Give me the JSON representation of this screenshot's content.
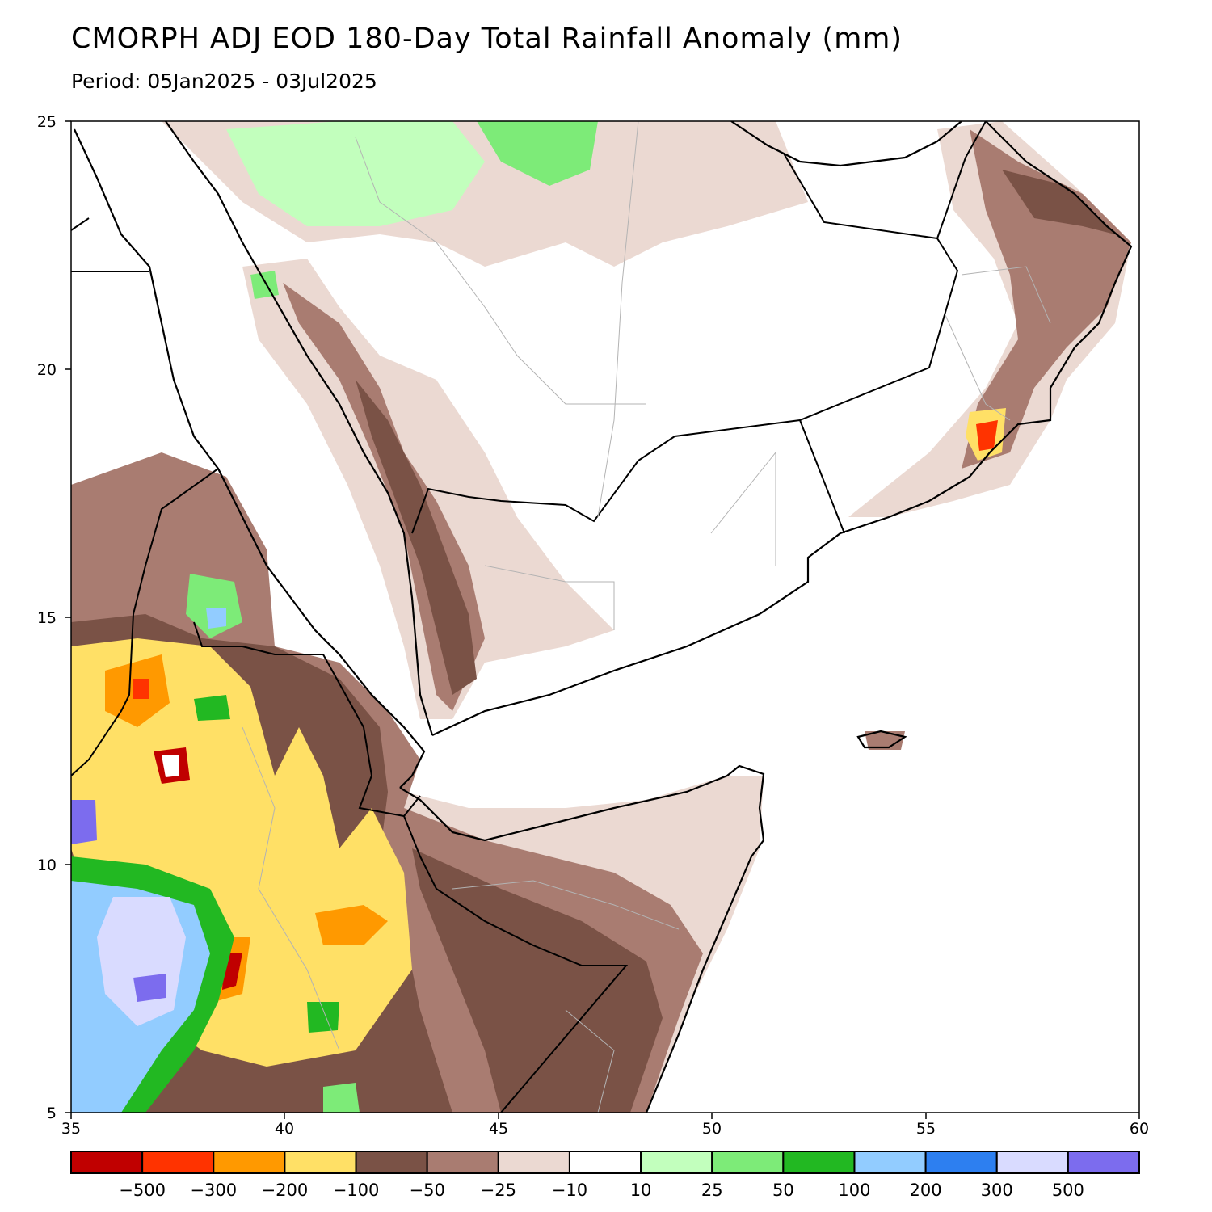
{
  "title": "CMORPH ADJ EOD 180-Day Total Rainfall Anomaly (mm)",
  "subtitle": "Period: 05Jan2025 - 03Jul2025",
  "axes": {
    "x_ticks": [
      "35",
      "40",
      "45",
      "50",
      "55",
      "60"
    ],
    "y_ticks": [
      "25",
      "20",
      "15",
      "10",
      "5"
    ]
  },
  "colorbar": {
    "labels": [
      "-500",
      "-300",
      "-200",
      "-100",
      "-50",
      "-25",
      "-10",
      "10",
      "25",
      "50",
      "100",
      "200",
      "300",
      "500"
    ],
    "colors": [
      "#c00000",
      "#ff3300",
      "#ff9900",
      "#ffe066",
      "#7a5246",
      "#a97c71",
      "#ebd9d2",
      "#ffffff",
      "#c2ffbd",
      "#7deb78",
      "#22b822",
      "#92ccff",
      "#2d7ff0",
      "#d9dbff",
      "#7c6cee"
    ]
  }
}
